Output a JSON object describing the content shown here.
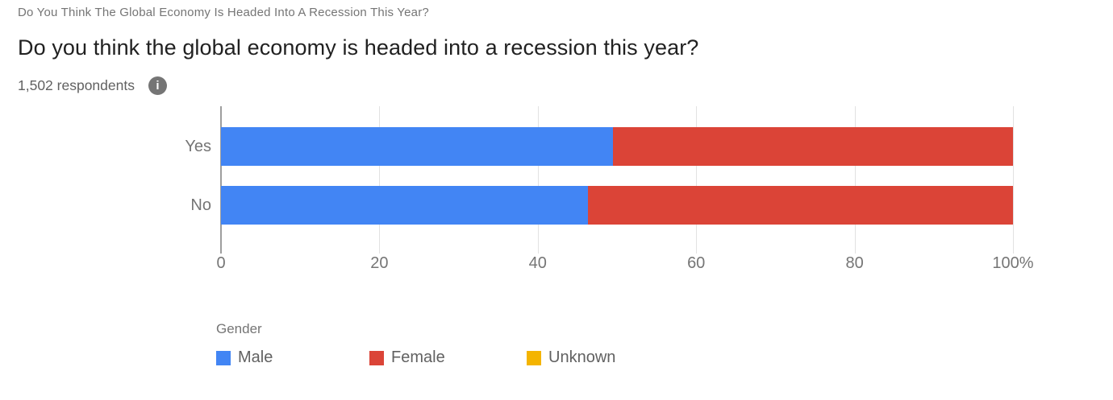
{
  "header": {
    "pretitle": "Do You Think The Global Economy Is Headed Into A Recession This Year?",
    "title": "Do you think the global economy is headed into a recession this year?",
    "respondents": "1,502 respondents",
    "info_glyph": "i"
  },
  "chart_data": {
    "type": "bar",
    "orientation": "horizontal",
    "stacked": true,
    "unit": "percent",
    "title": "Do you think the global economy is headed into a recession this year?",
    "categories": [
      "Yes",
      "No"
    ],
    "series": [
      {
        "name": "Male",
        "color": "#4285f4",
        "values": [
          49.5,
          46.3
        ]
      },
      {
        "name": "Female",
        "color": "#db4437",
        "values": [
          50.5,
          53.7
        ]
      },
      {
        "name": "Unknown",
        "color": "#f4b400",
        "values": [
          0,
          0
        ]
      }
    ],
    "x_axis": {
      "min": 0,
      "max": 100,
      "ticks": [
        {
          "value": 0,
          "label": "0"
        },
        {
          "value": 20,
          "label": "20"
        },
        {
          "value": 40,
          "label": "40"
        },
        {
          "value": 60,
          "label": "60"
        },
        {
          "value": 80,
          "label": "80"
        },
        {
          "value": 100,
          "label": "100%"
        }
      ]
    },
    "legend": {
      "title": "Gender",
      "entries": [
        "Male",
        "Female",
        "Unknown"
      ],
      "position": "bottom"
    },
    "grid": true,
    "colors": {
      "axis": "#9e9e9e",
      "gridline": "#e2e2e2",
      "tick_text": "#757575"
    }
  }
}
